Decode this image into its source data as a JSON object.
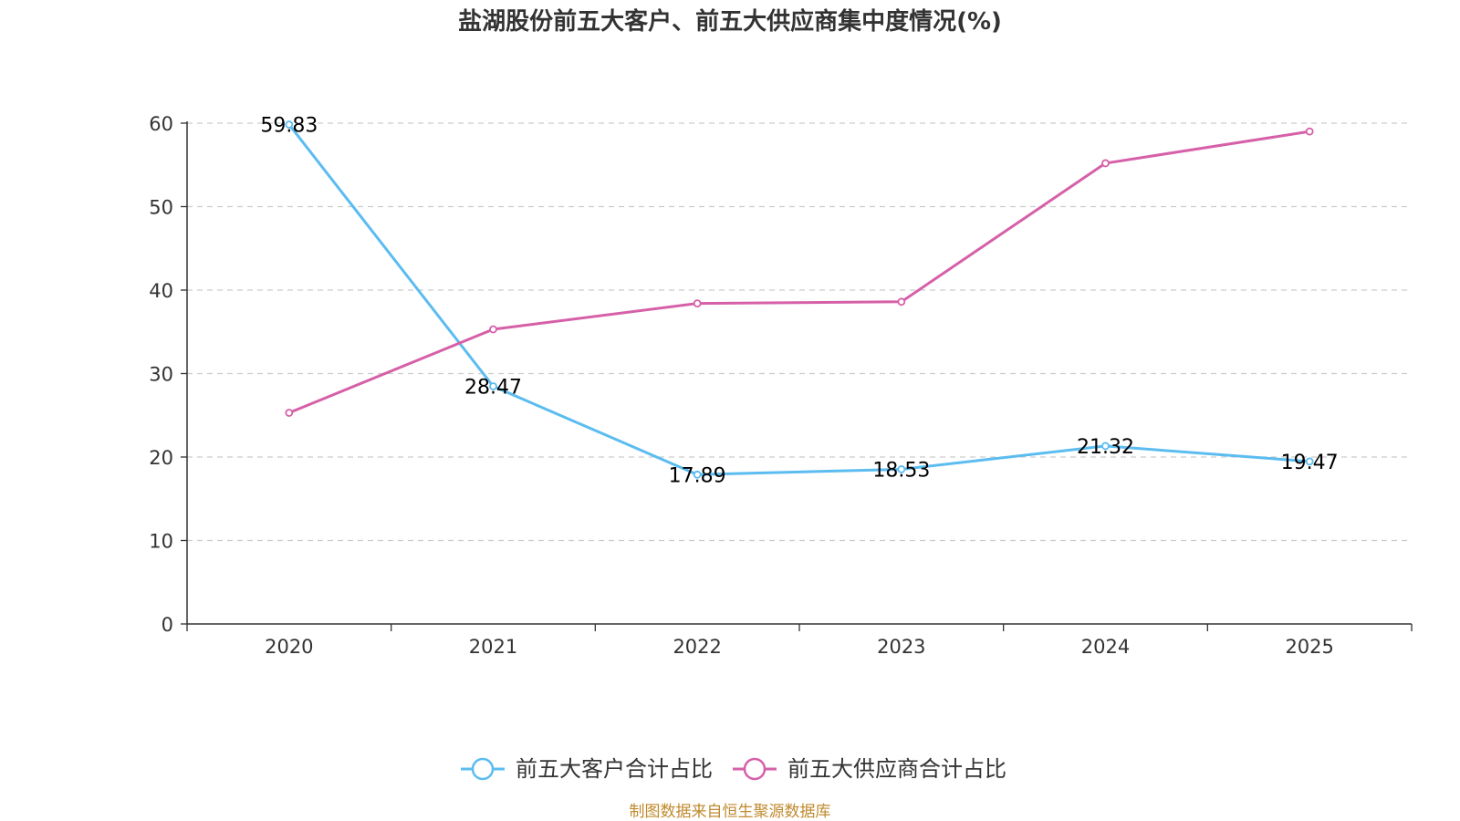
{
  "chart_data": {
    "type": "line",
    "title": "盐湖股份前五大客户、前五大供应商集中度情况(%)",
    "categories": [
      "2020",
      "2021",
      "2022",
      "2023",
      "2024",
      "2025"
    ],
    "ylim": [
      0,
      60
    ],
    "yticks": [
      "0",
      "10",
      "20",
      "30",
      "40",
      "50",
      "60"
    ],
    "grid": true,
    "legend_position": "bottom-center",
    "series": [
      {
        "name": "前五大客户合计占比",
        "color": "#5bbcf0",
        "values": [
          59.83,
          28.47,
          17.89,
          18.53,
          21.32,
          19.47
        ],
        "labels": [
          "59.83",
          "28.47",
          "17.89",
          "18.53",
          "21.32",
          "19.47"
        ]
      },
      {
        "name": "前五大供应商合计占比",
        "color": "#d660a8",
        "values": [
          25.3,
          35.3,
          38.4,
          38.6,
          55.2,
          59.0
        ],
        "labels": []
      }
    ],
    "source": "制图数据来自恒生聚源数据库"
  }
}
